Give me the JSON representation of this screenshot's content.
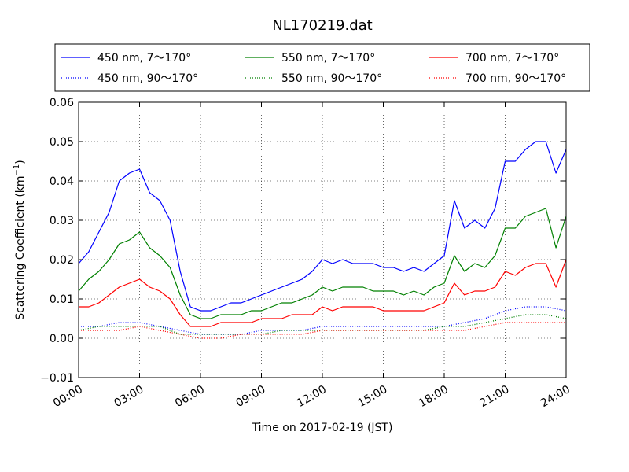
{
  "chart_data": {
    "type": "line",
    "title": "NL170219.dat",
    "xlabel": "Time on 2017-02-19 (JST)",
    "ylabel_main": "Scattering Coefficient (km",
    "ylabel_sup": "−1",
    "ylabel_close": ")",
    "xlim": [
      0,
      24
    ],
    "ylim": [
      -0.01,
      0.06
    ],
    "xticks": [
      0,
      3,
      6,
      9,
      12,
      15,
      18,
      21,
      24
    ],
    "xtick_labels": [
      "00:00",
      "03:00",
      "06:00",
      "09:00",
      "12:00",
      "15:00",
      "18:00",
      "21:00",
      "24:00"
    ],
    "yticks": [
      -0.01,
      0.0,
      0.01,
      0.02,
      0.03,
      0.04,
      0.05,
      0.06
    ],
    "ytick_labels": [
      "−0.01",
      "0.00",
      "0.01",
      "0.02",
      "0.03",
      "0.04",
      "0.05",
      "0.06"
    ],
    "grid": true,
    "legend_position": "top",
    "series": [
      {
        "name": "450 nm, 7～170°",
        "color": "#0000ff",
        "style": "solid",
        "x": [
          0,
          0.5,
          1,
          1.5,
          2,
          2.5,
          3,
          3.5,
          4,
          4.5,
          5,
          5.5,
          6,
          6.5,
          7,
          7.5,
          8,
          8.5,
          9,
          9.5,
          10,
          10.5,
          11,
          11.5,
          12,
          12.5,
          13,
          13.5,
          14,
          14.5,
          15,
          15.5,
          16,
          16.5,
          17,
          17.5,
          18,
          18.5,
          19,
          19.5,
          20,
          20.5,
          21,
          21.5,
          22,
          22.5,
          23,
          23.5,
          24
        ],
        "y": [
          0.019,
          0.022,
          0.027,
          0.032,
          0.04,
          0.042,
          0.043,
          0.037,
          0.035,
          0.03,
          0.017,
          0.008,
          0.007,
          0.007,
          0.008,
          0.009,
          0.009,
          0.01,
          0.011,
          0.012,
          0.013,
          0.014,
          0.015,
          0.017,
          0.02,
          0.019,
          0.02,
          0.019,
          0.019,
          0.019,
          0.018,
          0.018,
          0.017,
          0.018,
          0.017,
          0.019,
          0.021,
          0.035,
          0.028,
          0.03,
          0.028,
          0.033,
          0.045,
          0.045,
          0.048,
          0.05,
          0.05,
          0.042,
          0.048
        ]
      },
      {
        "name": "550 nm, 7～170°",
        "color": "#008000",
        "style": "solid",
        "x": [
          0,
          0.5,
          1,
          1.5,
          2,
          2.5,
          3,
          3.5,
          4,
          4.5,
          5,
          5.5,
          6,
          6.5,
          7,
          7.5,
          8,
          8.5,
          9,
          9.5,
          10,
          10.5,
          11,
          11.5,
          12,
          12.5,
          13,
          13.5,
          14,
          14.5,
          15,
          15.5,
          16,
          16.5,
          17,
          17.5,
          18,
          18.5,
          19,
          19.5,
          20,
          20.5,
          21,
          21.5,
          22,
          22.5,
          23,
          23.5,
          24
        ],
        "y": [
          0.012,
          0.015,
          0.017,
          0.02,
          0.024,
          0.025,
          0.027,
          0.023,
          0.021,
          0.018,
          0.011,
          0.006,
          0.005,
          0.005,
          0.006,
          0.006,
          0.006,
          0.007,
          0.007,
          0.008,
          0.009,
          0.009,
          0.01,
          0.011,
          0.013,
          0.012,
          0.013,
          0.013,
          0.013,
          0.012,
          0.012,
          0.012,
          0.011,
          0.012,
          0.011,
          0.013,
          0.014,
          0.021,
          0.017,
          0.019,
          0.018,
          0.021,
          0.028,
          0.028,
          0.031,
          0.032,
          0.033,
          0.023,
          0.031
        ]
      },
      {
        "name": "700 nm, 7～170°",
        "color": "#ff0000",
        "style": "solid",
        "x": [
          0,
          0.5,
          1,
          1.5,
          2,
          2.5,
          3,
          3.5,
          4,
          4.5,
          5,
          5.5,
          6,
          6.5,
          7,
          7.5,
          8,
          8.5,
          9,
          9.5,
          10,
          10.5,
          11,
          11.5,
          12,
          12.5,
          13,
          13.5,
          14,
          14.5,
          15,
          15.5,
          16,
          16.5,
          17,
          17.5,
          18,
          18.5,
          19,
          19.5,
          20,
          20.5,
          21,
          21.5,
          22,
          22.5,
          23,
          23.5,
          24
        ],
        "y": [
          0.008,
          0.008,
          0.009,
          0.011,
          0.013,
          0.014,
          0.015,
          0.013,
          0.012,
          0.01,
          0.006,
          0.003,
          0.003,
          0.003,
          0.004,
          0.004,
          0.004,
          0.004,
          0.005,
          0.005,
          0.005,
          0.006,
          0.006,
          0.006,
          0.008,
          0.007,
          0.008,
          0.008,
          0.008,
          0.008,
          0.007,
          0.007,
          0.007,
          0.007,
          0.007,
          0.008,
          0.009,
          0.014,
          0.011,
          0.012,
          0.012,
          0.013,
          0.017,
          0.016,
          0.018,
          0.019,
          0.019,
          0.013,
          0.02
        ]
      },
      {
        "name": "450 nm, 90～170°",
        "color": "#0000ff",
        "style": "dotted",
        "x": [
          0,
          1,
          2,
          3,
          4,
          5,
          6,
          7,
          8,
          9,
          10,
          11,
          12,
          13,
          14,
          15,
          16,
          17,
          18,
          19,
          20,
          21,
          22,
          23,
          24
        ],
        "y": [
          0.003,
          0.003,
          0.004,
          0.004,
          0.003,
          0.002,
          0.001,
          0.001,
          0.001,
          0.002,
          0.002,
          0.002,
          0.003,
          0.003,
          0.003,
          0.003,
          0.003,
          0.003,
          0.003,
          0.004,
          0.005,
          0.007,
          0.008,
          0.008,
          0.007
        ]
      },
      {
        "name": "550 nm, 90～170°",
        "color": "#008000",
        "style": "dotted",
        "x": [
          0,
          1,
          2,
          3,
          4,
          5,
          6,
          7,
          8,
          9,
          10,
          11,
          12,
          13,
          14,
          15,
          16,
          17,
          18,
          19,
          20,
          21,
          22,
          23,
          24
        ],
        "y": [
          0.002,
          0.003,
          0.003,
          0.003,
          0.003,
          0.001,
          0.001,
          0.001,
          0.001,
          0.001,
          0.002,
          0.002,
          0.002,
          0.002,
          0.002,
          0.002,
          0.002,
          0.002,
          0.003,
          0.003,
          0.004,
          0.005,
          0.006,
          0.006,
          0.005
        ]
      },
      {
        "name": "700 nm, 90～170°",
        "color": "#ff0000",
        "style": "dotted",
        "x": [
          0,
          1,
          2,
          3,
          4,
          5,
          6,
          7,
          8,
          9,
          10,
          11,
          12,
          13,
          14,
          15,
          16,
          17,
          18,
          19,
          20,
          21,
          22,
          23,
          24
        ],
        "y": [
          0.002,
          0.002,
          0.002,
          0.003,
          0.002,
          0.001,
          0.0,
          0.0,
          0.001,
          0.001,
          0.001,
          0.001,
          0.002,
          0.002,
          0.002,
          0.002,
          0.002,
          0.002,
          0.002,
          0.002,
          0.003,
          0.004,
          0.004,
          0.004,
          0.004
        ]
      }
    ],
    "legend_order": [
      0,
      3,
      1,
      4,
      2,
      5
    ]
  }
}
